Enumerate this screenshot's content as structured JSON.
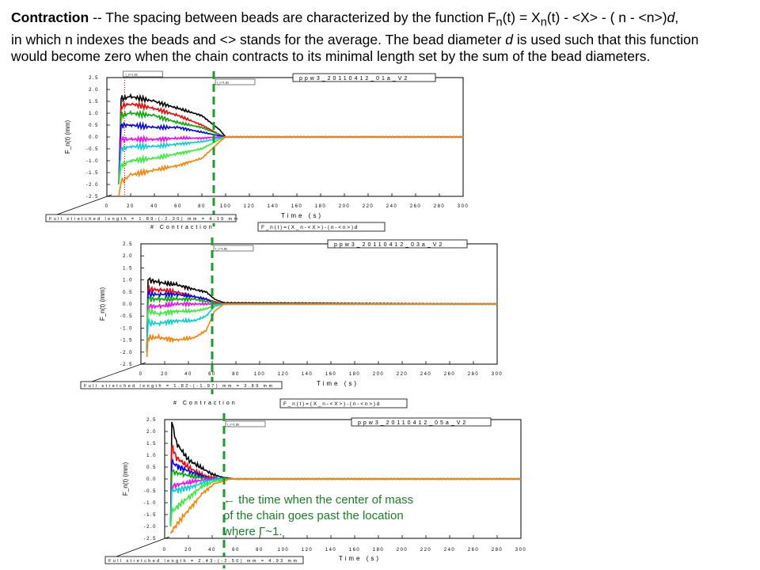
{
  "intro": {
    "bold": "Contraction",
    "line1_a": " -- The spacing between beads are characterized by the function F",
    "line1_sub": "n",
    "line1_b": "(t) = X",
    "line1_sub2": "n",
    "line1_c": "(t) - <X> - ( n - <n>)",
    "line1_d": "d",
    "line1_e": ",",
    "line2_a": " in which n indexes the beads and <> stands for the average. The bead diameter ",
    "line2_d": "d",
    "line2_b": " is used such that this function",
    "line3": "would  become zero when the chain contracts to its minimal length set by the sum of the bead diameters."
  },
  "annotation": {
    "line1": "← the time when the center of mass",
    "line2": "of the chain goes past the location",
    "line3": "where Γ~1."
  },
  "colors": {
    "black": "#000000",
    "red": "#ff0000",
    "green": "#00aa00",
    "blue": "#0000ff",
    "magenta": "#ff00ff",
    "cyan": "#00d0d0",
    "lime": "#33ee33",
    "orange": "#ff8000",
    "marker": "#1b9e2a"
  },
  "chart_data": [
    {
      "type": "line",
      "panel_label": "ppw3_20110412_01a_V2",
      "xlabel": "Time (s)",
      "ylabel": "F_n(t) (mm)",
      "xlim": [
        0,
        300
      ],
      "ylim": [
        -2.5,
        2.5
      ],
      "xticks": [
        0,
        20,
        40,
        60,
        80,
        100,
        120,
        140,
        160,
        180,
        200,
        220,
        240,
        260,
        280,
        300
      ],
      "yticks": [
        2.5,
        2.0,
        1.5,
        1.0,
        0.5,
        0.0,
        -0.5,
        -1.0,
        -1.5,
        -2.0,
        -2.5
      ],
      "marker_time": 90,
      "marker_small_text": "t_c=1.8s",
      "dotted_line_time": 15,
      "dotted_small_text": "t_s=1.8s",
      "full_stretch_note": "Full stretched length = 1.89-(-2.30) mm = 4.19 mm",
      "contraction_label": "# Contraction",
      "formula_label": "F_n(t)=(X_n-<X>)-(n-<n>)d",
      "series": [
        {
          "color": "black",
          "values": [
            [
              10,
              -2.0
            ],
            [
              12,
              1.6
            ],
            [
              20,
              1.7
            ],
            [
              40,
              1.5
            ],
            [
              60,
              1.2
            ],
            [
              80,
              0.9
            ],
            [
              95,
              0.3
            ],
            [
              100,
              0.0
            ],
            [
              300,
              0.0
            ]
          ]
        },
        {
          "color": "red",
          "values": [
            [
              10,
              -2.0
            ],
            [
              12,
              1.3
            ],
            [
              20,
              1.4
            ],
            [
              40,
              1.2
            ],
            [
              60,
              0.9
            ],
            [
              80,
              0.5
            ],
            [
              95,
              0.1
            ],
            [
              100,
              0.0
            ],
            [
              300,
              0.0
            ]
          ]
        },
        {
          "color": "green",
          "values": [
            [
              10,
              -2.0
            ],
            [
              12,
              0.9
            ],
            [
              20,
              1.0
            ],
            [
              40,
              0.9
            ],
            [
              60,
              0.6
            ],
            [
              80,
              0.4
            ],
            [
              95,
              0.1
            ],
            [
              100,
              0.0
            ],
            [
              300,
              0.0
            ]
          ]
        },
        {
          "color": "blue",
          "values": [
            [
              10,
              -2.0
            ],
            [
              12,
              0.5
            ],
            [
              20,
              0.5
            ],
            [
              40,
              0.4
            ],
            [
              60,
              0.4
            ],
            [
              80,
              0.2
            ],
            [
              95,
              0.05
            ],
            [
              100,
              0.0
            ],
            [
              300,
              0.0
            ]
          ]
        },
        {
          "color": "magenta",
          "values": [
            [
              10,
              -2.0
            ],
            [
              12,
              -0.1
            ],
            [
              20,
              -0.1
            ],
            [
              40,
              -0.1
            ],
            [
              60,
              -0.05
            ],
            [
              80,
              -0.05
            ],
            [
              95,
              0.0
            ],
            [
              300,
              0.0
            ]
          ]
        },
        {
          "color": "cyan",
          "values": [
            [
              10,
              -2.0
            ],
            [
              12,
              -0.5
            ],
            [
              20,
              -0.4
            ],
            [
              40,
              -0.4
            ],
            [
              60,
              -0.3
            ],
            [
              80,
              -0.2
            ],
            [
              95,
              -0.05
            ],
            [
              100,
              0.0
            ],
            [
              300,
              0.0
            ]
          ]
        },
        {
          "color": "lime",
          "values": [
            [
              10,
              -2.0
            ],
            [
              12,
              -1.2
            ],
            [
              20,
              -1.0
            ],
            [
              40,
              -0.9
            ],
            [
              60,
              -0.7
            ],
            [
              80,
              -0.5
            ],
            [
              95,
              -0.1
            ],
            [
              100,
              0.0
            ],
            [
              300,
              0.0
            ]
          ]
        },
        {
          "color": "orange",
          "values": [
            [
              10,
              -2.5
            ],
            [
              12,
              -1.9
            ],
            [
              20,
              -1.6
            ],
            [
              40,
              -1.4
            ],
            [
              60,
              -1.2
            ],
            [
              80,
              -0.9
            ],
            [
              95,
              -0.2
            ],
            [
              100,
              0.0
            ],
            [
              300,
              0.0
            ]
          ]
        }
      ]
    },
    {
      "type": "line",
      "panel_label": "ppw3_20110412_03a_V2",
      "xlabel": "Time (s)",
      "ylabel": "F_n(t) (mm)",
      "xlim": [
        0,
        300
      ],
      "ylim": [
        -2.5,
        2.5
      ],
      "xticks": [
        0,
        20,
        40,
        60,
        80,
        100,
        120,
        140,
        160,
        180,
        200,
        220,
        240,
        260,
        280,
        300
      ],
      "yticks": [
        2.5,
        2.0,
        1.5,
        1.0,
        0.5,
        0.0,
        -0.5,
        -1.0,
        -1.5,
        -2.0,
        -2.5
      ],
      "marker_time": 60,
      "marker_small_text": "t_c=1.8s",
      "full_stretch_note": "Full stretched length = 1.82-(-1.97) mm = 3.89 mm",
      "contraction_label": "# Contraction",
      "formula_label": "F_n(t)=(X_n-<X>)-(n-<n>)d",
      "series": [
        {
          "color": "black",
          "values": [
            [
              5,
              -2.0
            ],
            [
              6,
              1.0
            ],
            [
              15,
              0.9
            ],
            [
              30,
              0.8
            ],
            [
              45,
              0.6
            ],
            [
              55,
              0.5
            ],
            [
              62,
              0.2
            ],
            [
              70,
              0.05
            ],
            [
              300,
              0.0
            ]
          ]
        },
        {
          "color": "red",
          "values": [
            [
              5,
              -2.0
            ],
            [
              6,
              0.6
            ],
            [
              15,
              0.6
            ],
            [
              30,
              0.5
            ],
            [
              45,
              0.3
            ],
            [
              55,
              0.2
            ],
            [
              62,
              0.1
            ],
            [
              70,
              0.0
            ],
            [
              300,
              0.0
            ]
          ]
        },
        {
          "color": "blue",
          "values": [
            [
              5,
              -2.0
            ],
            [
              6,
              0.4
            ],
            [
              15,
              0.4
            ],
            [
              30,
              0.4
            ],
            [
              45,
              0.3
            ],
            [
              55,
              0.2
            ],
            [
              62,
              0.05
            ],
            [
              70,
              0.0
            ],
            [
              300,
              0.0
            ]
          ]
        },
        {
          "color": "green",
          "values": [
            [
              5,
              -2.0
            ],
            [
              6,
              0.2
            ],
            [
              15,
              0.2
            ],
            [
              30,
              0.2
            ],
            [
              45,
              0.2
            ],
            [
              55,
              0.1
            ],
            [
              62,
              0.05
            ],
            [
              70,
              0.0
            ],
            [
              300,
              0.0
            ]
          ]
        },
        {
          "color": "magenta",
          "values": [
            [
              5,
              -2.0
            ],
            [
              6,
              -0.1
            ],
            [
              15,
              -0.1
            ],
            [
              30,
              0.0
            ],
            [
              45,
              0.0
            ],
            [
              60,
              0.0
            ],
            [
              300,
              0.0
            ]
          ]
        },
        {
          "color": "lime",
          "values": [
            [
              5,
              -2.0
            ],
            [
              6,
              -0.3
            ],
            [
              15,
              -0.4
            ],
            [
              30,
              -0.3
            ],
            [
              45,
              -0.3
            ],
            [
              55,
              -0.2
            ],
            [
              62,
              -0.05
            ],
            [
              70,
              0.0
            ],
            [
              300,
              0.0
            ]
          ]
        },
        {
          "color": "cyan",
          "values": [
            [
              5,
              -2.0
            ],
            [
              6,
              -0.8
            ],
            [
              15,
              -0.8
            ],
            [
              30,
              -0.7
            ],
            [
              45,
              -0.7
            ],
            [
              55,
              -0.5
            ],
            [
              62,
              -0.1
            ],
            [
              70,
              0.0
            ],
            [
              300,
              0.0
            ]
          ]
        },
        {
          "color": "orange",
          "values": [
            [
              5,
              -2.2
            ],
            [
              6,
              -1.4
            ],
            [
              15,
              -1.4
            ],
            [
              30,
              -1.5
            ],
            [
              45,
              -1.4
            ],
            [
              55,
              -1.1
            ],
            [
              62,
              -0.3
            ],
            [
              70,
              0.0
            ],
            [
              300,
              0.0
            ]
          ]
        }
      ]
    },
    {
      "type": "line",
      "panel_label": "ppw3_20110412_05a_V2",
      "xlabel": "Time (s)",
      "ylabel": "F_n(t) (mm)",
      "xlim": [
        0,
        300
      ],
      "ylim": [
        -2.5,
        2.5
      ],
      "xticks": [
        0,
        20,
        40,
        60,
        80,
        100,
        120,
        140,
        160,
        180,
        200,
        220,
        240,
        260,
        280,
        300
      ],
      "yticks": [
        2.5,
        2.0,
        1.5,
        1.0,
        0.5,
        0.0,
        -0.5,
        -1.0,
        -1.5,
        -2.0,
        -2.5
      ],
      "marker_time": 50,
      "marker_small_text": "t_c=1.8s",
      "full_stretch_note": "Full stretched length = 2.43-(-2.50) mm = 4.93 mm",
      "series": [
        {
          "color": "black",
          "values": [
            [
              5,
              -2.0
            ],
            [
              6,
              2.4
            ],
            [
              10,
              1.5
            ],
            [
              20,
              0.8
            ],
            [
              30,
              0.5
            ],
            [
              40,
              0.2
            ],
            [
              50,
              0.05
            ],
            [
              60,
              0.0
            ],
            [
              300,
              0.0
            ]
          ]
        },
        {
          "color": "red",
          "values": [
            [
              5,
              -2.0
            ],
            [
              6,
              1.4
            ],
            [
              10,
              0.9
            ],
            [
              20,
              0.5
            ],
            [
              30,
              0.2
            ],
            [
              40,
              0.05
            ],
            [
              50,
              0.0
            ],
            [
              300,
              0.0
            ]
          ]
        },
        {
          "color": "blue",
          "values": [
            [
              5,
              -2.0
            ],
            [
              6,
              0.7
            ],
            [
              12,
              0.5
            ],
            [
              22,
              0.3
            ],
            [
              35,
              0.05
            ],
            [
              45,
              0.0
            ],
            [
              300,
              0.0
            ]
          ]
        },
        {
          "color": "green",
          "values": [
            [
              5,
              -2.0
            ],
            [
              6,
              0.3
            ],
            [
              15,
              0.2
            ],
            [
              30,
              0.05
            ],
            [
              45,
              0.0
            ],
            [
              300,
              0.0
            ]
          ]
        },
        {
          "color": "magenta",
          "values": [
            [
              5,
              -2.0
            ],
            [
              6,
              -0.3
            ],
            [
              15,
              -0.2
            ],
            [
              25,
              -0.1
            ],
            [
              40,
              0.0
            ],
            [
              300,
              0.0
            ]
          ]
        },
        {
          "color": "cyan",
          "values": [
            [
              5,
              -2.0
            ],
            [
              6,
              -0.5
            ],
            [
              12,
              -0.45
            ],
            [
              25,
              -0.3
            ],
            [
              35,
              -0.1
            ],
            [
              45,
              0.0
            ],
            [
              300,
              0.0
            ]
          ]
        },
        {
          "color": "lime",
          "values": [
            [
              5,
              -2.0
            ],
            [
              6,
              -1.4
            ],
            [
              12,
              -1.1
            ],
            [
              22,
              -0.7
            ],
            [
              32,
              -0.3
            ],
            [
              42,
              -0.1
            ],
            [
              55,
              0.0
            ],
            [
              300,
              0.0
            ]
          ]
        },
        {
          "color": "orange",
          "values": [
            [
              5,
              -2.3
            ],
            [
              6,
              -2.2
            ],
            [
              12,
              -1.8
            ],
            [
              22,
              -1.2
            ],
            [
              32,
              -0.6
            ],
            [
              42,
              -0.2
            ],
            [
              55,
              0.0
            ],
            [
              300,
              0.0
            ]
          ]
        }
      ]
    }
  ]
}
